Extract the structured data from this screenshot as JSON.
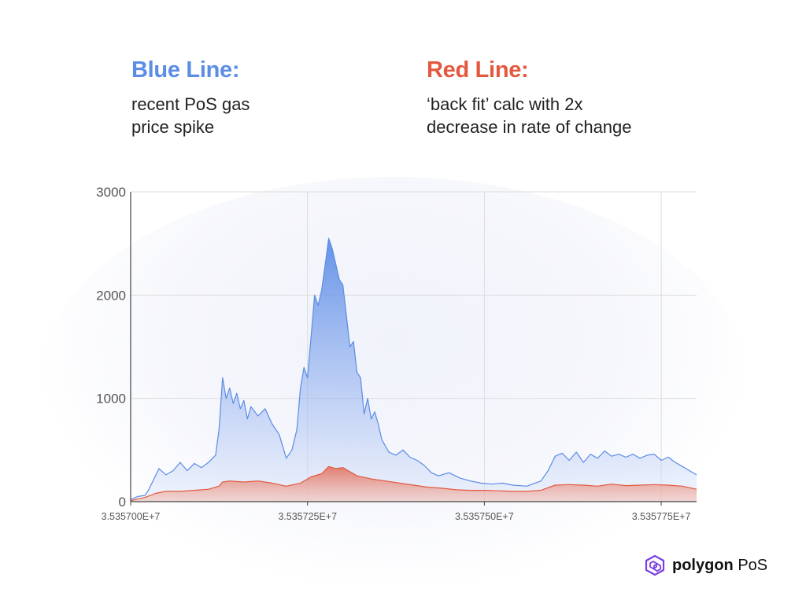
{
  "legend": {
    "blue": {
      "title": "Blue Line:",
      "desc_line1": "recent PoS gas",
      "desc_line2": "price spike"
    },
    "red": {
      "title": "Red Line:",
      "desc_line1": "‘back fit’ calc with 2x",
      "desc_line2": "decrease in rate of change"
    }
  },
  "brand": {
    "name": "polygon",
    "suffix": "PoS",
    "logo_icon": "polygon-logo-icon"
  },
  "colors": {
    "blue": "#5b8ce6",
    "red": "#e2593f",
    "brand_purple": "#7b3fe4",
    "grid": "#dcdcdc",
    "axis": "#444444"
  },
  "chart_data": {
    "type": "area",
    "title": "",
    "xlabel": "",
    "ylabel": "",
    "ylim": [
      0,
      3000
    ],
    "xlim": [
      35357000,
      35357800
    ],
    "grid": true,
    "x_tick_values": [
      35357000,
      35357250,
      35357500,
      35357750
    ],
    "x_tick_labels": [
      "3.535700E+7",
      "3.535725E+7",
      "3.535750E+7",
      "3.535775E+7"
    ],
    "y_tick_values": [
      0,
      1000,
      2000,
      3000
    ],
    "y_tick_labels": [
      "0",
      "1000",
      "2000",
      "3000"
    ],
    "series": [
      {
        "name": "Blue Line",
        "color": "#5b8ce6",
        "points": [
          [
            35357000,
            20
          ],
          [
            35357010,
            50
          ],
          [
            35357020,
            60
          ],
          [
            35357025,
            110
          ],
          [
            35357035,
            250
          ],
          [
            35357040,
            320
          ],
          [
            35357050,
            260
          ],
          [
            35357060,
            300
          ],
          [
            35357070,
            380
          ],
          [
            35357080,
            300
          ],
          [
            35357090,
            370
          ],
          [
            35357100,
            330
          ],
          [
            35357110,
            380
          ],
          [
            35357120,
            450
          ],
          [
            35357125,
            700
          ],
          [
            35357130,
            1200
          ],
          [
            35357135,
            1000
          ],
          [
            35357140,
            1100
          ],
          [
            35357145,
            950
          ],
          [
            35357150,
            1050
          ],
          [
            35357155,
            900
          ],
          [
            35357160,
            980
          ],
          [
            35357165,
            800
          ],
          [
            35357170,
            920
          ],
          [
            35357180,
            830
          ],
          [
            35357190,
            900
          ],
          [
            35357200,
            750
          ],
          [
            35357210,
            650
          ],
          [
            35357220,
            420
          ],
          [
            35357228,
            500
          ],
          [
            35357235,
            700
          ],
          [
            35357240,
            1100
          ],
          [
            35357245,
            1300
          ],
          [
            35357250,
            1200
          ],
          [
            35357255,
            1600
          ],
          [
            35357260,
            2000
          ],
          [
            35357265,
            1900
          ],
          [
            35357270,
            2050
          ],
          [
            35357275,
            2300
          ],
          [
            35357280,
            2550
          ],
          [
            35357285,
            2450
          ],
          [
            35357290,
            2300
          ],
          [
            35357295,
            2150
          ],
          [
            35357300,
            2100
          ],
          [
            35357305,
            1800
          ],
          [
            35357310,
            1500
          ],
          [
            35357315,
            1550
          ],
          [
            35357320,
            1250
          ],
          [
            35357325,
            1200
          ],
          [
            35357330,
            850
          ],
          [
            35357335,
            1000
          ],
          [
            35357340,
            800
          ],
          [
            35357345,
            870
          ],
          [
            35357350,
            750
          ],
          [
            35357355,
            600
          ],
          [
            35357365,
            480
          ],
          [
            35357375,
            450
          ],
          [
            35357385,
            500
          ],
          [
            35357395,
            430
          ],
          [
            35357405,
            400
          ],
          [
            35357415,
            350
          ],
          [
            35357425,
            280
          ],
          [
            35357435,
            250
          ],
          [
            35357450,
            280
          ],
          [
            35357465,
            230
          ],
          [
            35357480,
            200
          ],
          [
            35357495,
            180
          ],
          [
            35357510,
            170
          ],
          [
            35357525,
            180
          ],
          [
            35357540,
            160
          ],
          [
            35357560,
            150
          ],
          [
            35357580,
            200
          ],
          [
            35357590,
            300
          ],
          [
            35357600,
            440
          ],
          [
            35357610,
            470
          ],
          [
            35357620,
            400
          ],
          [
            35357630,
            480
          ],
          [
            35357640,
            380
          ],
          [
            35357650,
            460
          ],
          [
            35357660,
            420
          ],
          [
            35357670,
            490
          ],
          [
            35357680,
            440
          ],
          [
            35357690,
            460
          ],
          [
            35357700,
            430
          ],
          [
            35357710,
            460
          ],
          [
            35357720,
            420
          ],
          [
            35357730,
            450
          ],
          [
            35357740,
            460
          ],
          [
            35357750,
            400
          ],
          [
            35357760,
            430
          ],
          [
            35357770,
            380
          ],
          [
            35357780,
            340
          ],
          [
            35357790,
            300
          ],
          [
            35357800,
            260
          ]
        ]
      },
      {
        "name": "Red Line",
        "color": "#e2593f",
        "points": [
          [
            35357000,
            10
          ],
          [
            35357020,
            40
          ],
          [
            35357035,
            80
          ],
          [
            35357050,
            100
          ],
          [
            35357070,
            100
          ],
          [
            35357090,
            110
          ],
          [
            35357110,
            120
          ],
          [
            35357125,
            150
          ],
          [
            35357130,
            190
          ],
          [
            35357140,
            200
          ],
          [
            35357160,
            190
          ],
          [
            35357180,
            200
          ],
          [
            35357200,
            180
          ],
          [
            35357220,
            150
          ],
          [
            35357240,
            180
          ],
          [
            35357255,
            240
          ],
          [
            35357270,
            270
          ],
          [
            35357280,
            340
          ],
          [
            35357290,
            320
          ],
          [
            35357300,
            330
          ],
          [
            35357310,
            290
          ],
          [
            35357320,
            250
          ],
          [
            35357340,
            220
          ],
          [
            35357360,
            200
          ],
          [
            35357380,
            180
          ],
          [
            35357400,
            160
          ],
          [
            35357420,
            140
          ],
          [
            35357440,
            130
          ],
          [
            35357460,
            115
          ],
          [
            35357480,
            110
          ],
          [
            35357500,
            110
          ],
          [
            35357520,
            105
          ],
          [
            35357540,
            100
          ],
          [
            35357560,
            100
          ],
          [
            35357580,
            110
          ],
          [
            35357600,
            160
          ],
          [
            35357620,
            165
          ],
          [
            35357640,
            160
          ],
          [
            35357660,
            150
          ],
          [
            35357680,
            170
          ],
          [
            35357700,
            155
          ],
          [
            35357720,
            160
          ],
          [
            35357740,
            165
          ],
          [
            35357760,
            160
          ],
          [
            35357780,
            150
          ],
          [
            35357800,
            120
          ]
        ]
      }
    ]
  }
}
